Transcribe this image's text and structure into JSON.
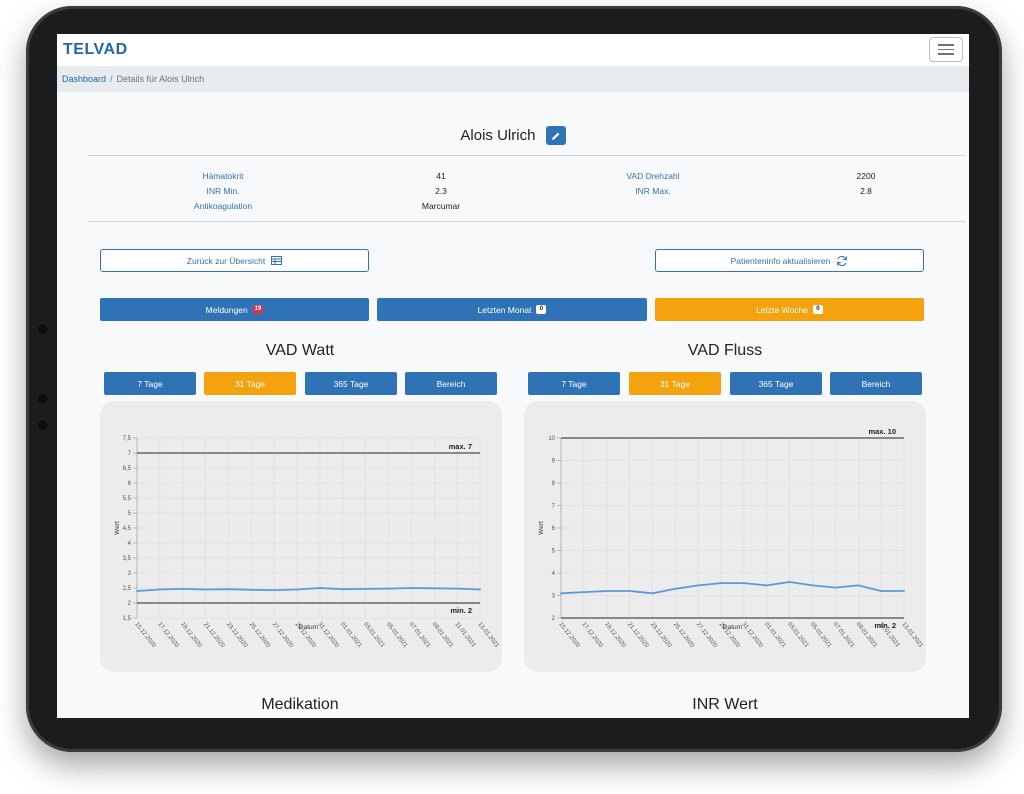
{
  "app": {
    "brand": "TELVAD"
  },
  "breadcrumb": {
    "home": "Dashboard",
    "separator": "/",
    "current": "Details für Alois Ulrich"
  },
  "patient": {
    "name": "Alois Ulrich"
  },
  "info": {
    "left": [
      {
        "label": "Hämatokrit",
        "value": "41"
      },
      {
        "label": "INR Min.",
        "value": "2.3"
      },
      {
        "label": "Antikoagulation",
        "value": "Marcumar"
      }
    ],
    "right": [
      {
        "label": "VAD Drehzahl",
        "value": "2200"
      },
      {
        "label": "INR Max.",
        "value": "2.8"
      }
    ]
  },
  "actions": {
    "back_label": "Zurück zur Übersicht",
    "refresh_label": "Patienteninfo aktualisieren"
  },
  "tabs": [
    {
      "label": "Meldungen",
      "badge": "19",
      "active": false
    },
    {
      "label": "Letzten Monat",
      "badge": "0",
      "active": false
    },
    {
      "label": "Letzte Woche",
      "badge": "0",
      "active": true
    }
  ],
  "colors": {
    "primary": "#2f72b5",
    "accent": "#f5a20f",
    "line": "#5b9bd5",
    "threshold": "#666666"
  },
  "charts": [
    {
      "title": "VAD Watt",
      "ranges": [
        {
          "label": "7 Tage",
          "active": false
        },
        {
          "label": "31 Tage",
          "active": true
        },
        {
          "label": "365 Tage",
          "active": false
        },
        {
          "label": "Bereich",
          "active": false
        }
      ]
    },
    {
      "title": "VAD Fluss",
      "ranges": [
        {
          "label": "7 Tage",
          "active": false
        },
        {
          "label": "31 Tage",
          "active": true
        },
        {
          "label": "365 Tage",
          "active": false
        },
        {
          "label": "Bereich",
          "active": false
        }
      ]
    }
  ],
  "chart_data": [
    {
      "type": "line",
      "ylabel": "Wert",
      "xlabel": "Datum",
      "ylim": [
        1.5,
        7.5
      ],
      "yticks": [
        "1,5",
        "2",
        "2,5",
        "3",
        "3,5",
        "4",
        "4,5",
        "5",
        "5,5",
        "6",
        "6,5",
        "7",
        "7,5"
      ],
      "ytick_values": [
        1.5,
        2,
        2.5,
        3,
        3.5,
        4,
        4.5,
        5,
        5.5,
        6,
        6.5,
        7,
        7.5
      ],
      "x": [
        "15.12.2020",
        "17.12.2020",
        "19.12.2020",
        "21.12.2020",
        "23.12.2020",
        "25.12.2020",
        "27.12.2020",
        "29.12.2020",
        "31.12.2020",
        "01.01.2021",
        "03.01.2021",
        "05.01.2021",
        "07.01.2021",
        "09.01.2021",
        "11.01.2021",
        "13.01.2021"
      ],
      "series": [
        {
          "values": [
            2.4,
            2.45,
            2.47,
            2.45,
            2.46,
            2.44,
            2.43,
            2.45,
            2.5,
            2.46,
            2.47,
            2.48,
            2.5,
            2.49,
            2.48,
            2.45
          ]
        }
      ],
      "max_line": {
        "label": "max. 7",
        "value": 7
      },
      "min_line": {
        "label": "min. 2",
        "value": 2
      },
      "grid": true
    },
    {
      "type": "line",
      "ylabel": "Wert",
      "xlabel": "Datum",
      "ylim": [
        2,
        10
      ],
      "yticks": [
        "2",
        "3",
        "4",
        "5",
        "6",
        "7",
        "8",
        "9",
        "10"
      ],
      "ytick_values": [
        2,
        3,
        4,
        5,
        6,
        7,
        8,
        9,
        10
      ],
      "x": [
        "15.12.2020",
        "17.12.2020",
        "19.12.2020",
        "21.12.2020",
        "23.12.2020",
        "25.12.2020",
        "27.12.2020",
        "29.12.2020",
        "31.12.2020",
        "01.01.2021",
        "03.01.2021",
        "05.01.2021",
        "07.01.2021",
        "09.01.2021",
        "11.01.2021",
        "13.01.2021"
      ],
      "series": [
        {
          "values": [
            3.1,
            3.15,
            3.2,
            3.2,
            3.1,
            3.3,
            3.45,
            3.55,
            3.55,
            3.45,
            3.6,
            3.45,
            3.35,
            3.45,
            3.2,
            3.2
          ]
        }
      ],
      "max_line": {
        "label": "max. 10",
        "value": 10
      },
      "min_line": {
        "label": "min. 2",
        "value": 2
      },
      "grid": true
    }
  ],
  "sections_below": [
    {
      "title": "Medikation"
    },
    {
      "title": "INR Wert"
    }
  ]
}
